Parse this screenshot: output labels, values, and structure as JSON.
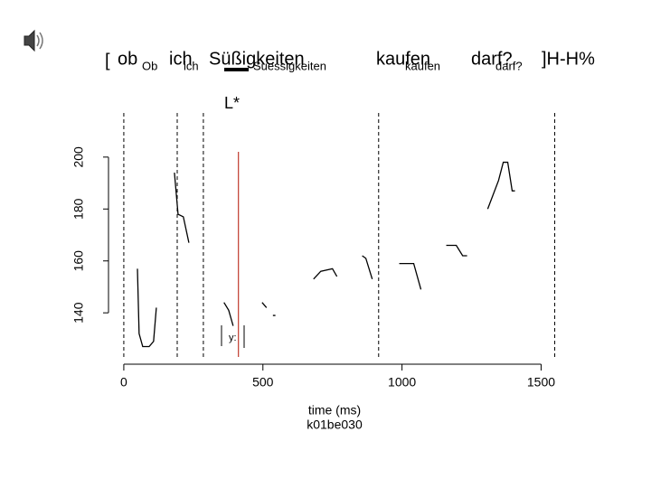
{
  "chart_data": {
    "type": "line",
    "transcript": {
      "open": "[",
      "words": [
        {
          "text": "ob",
          "gloss": "Ob"
        },
        {
          "text": "ich",
          "gloss": "ich"
        },
        {
          "text": "Süßigkeiten",
          "gloss": "Suessigkeiten"
        },
        {
          "text": "kaufen",
          "gloss": "kaufen"
        },
        {
          "text": "darf?",
          "gloss": "darf?"
        }
      ],
      "close": "]H-H%"
    },
    "accent": "L*",
    "annotation": "y:",
    "xlabel": "time (ms)",
    "file": "k01be030",
    "x": [
      49,
      55,
      68,
      91,
      107,
      117,
      null,
      182,
      195,
      214,
      234,
      null,
      360,
      377,
      393,
      null,
      497,
      513,
      null,
      536,
      545,
      null,
      682,
      708,
      750,
      766,
      null,
      857,
      870,
      893,
      null,
      990,
      1042,
      1068,
      null,
      1159,
      1195,
      1218,
      1234,
      null,
      1308,
      1347,
      1364,
      1380,
      1396,
      1406
    ],
    "series": [
      {
        "color": "#000000",
        "values": [
          157,
          132,
          127,
          127,
          129,
          142,
          null,
          194,
          178,
          177,
          167,
          null,
          144,
          141,
          135,
          null,
          144,
          142,
          null,
          139,
          139,
          null,
          153,
          156,
          157,
          154,
          null,
          162,
          161,
          153,
          null,
          159,
          159,
          149,
          null,
          166,
          166,
          162,
          162,
          null,
          180,
          191,
          198,
          198,
          187,
          187
        ]
      }
    ],
    "xlim": [
      -55,
      1570
    ],
    "ylim": [
      123,
      217
    ],
    "xticks": [
      0,
      500,
      1000,
      1500
    ],
    "yticks": [
      140,
      160,
      180,
      200
    ],
    "boundaries": [
      0,
      192,
      286,
      916,
      1549
    ],
    "accent_time": 412,
    "accent_color": "#c0392b"
  }
}
